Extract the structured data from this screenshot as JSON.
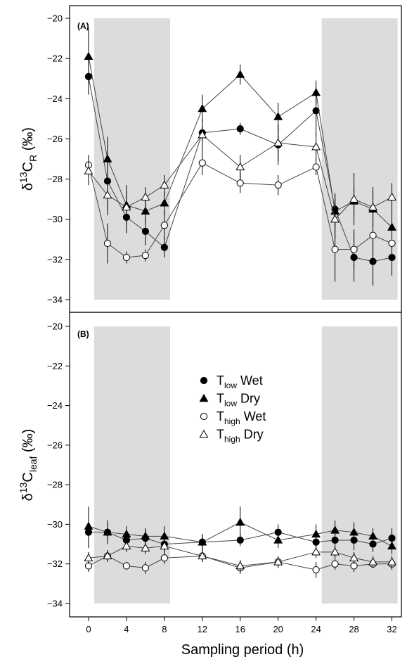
{
  "chart_data": [
    {
      "type": "line",
      "panel_label": "(A)",
      "ylabel": {
        "prefix": "δ",
        "sup": "13",
        "main": "C",
        "sub": "R",
        "unit": "(‰)"
      },
      "ylim": [
        -34,
        -20
      ],
      "yticks": [
        -20,
        -22,
        -24,
        -26,
        -28,
        -30,
        -32,
        -34
      ],
      "xlim": [
        -2,
        33
      ],
      "shaded_x_ranges": [
        [
          0.6,
          8.6
        ],
        [
          24.6,
          32.6
        ]
      ],
      "series": [
        {
          "id": "tlow_wet",
          "marker": "circle",
          "fill": "#000000",
          "x": [
            0,
            2,
            4,
            6,
            8,
            12,
            16,
            20,
            24,
            26,
            28,
            30,
            32
          ],
          "y": [
            -22.9,
            -28.1,
            -29.9,
            -30.6,
            -31.4,
            -25.7,
            -25.5,
            -26.3,
            -24.6,
            -29.5,
            -31.9,
            -32.1,
            -31.9
          ],
          "err": [
            0.9,
            1.4,
            0.8,
            0.7,
            0.5,
            0.4,
            0.3,
            1.0,
            1.2,
            0.8,
            1.2,
            1.2,
            0.9
          ]
        },
        {
          "id": "tlow_dry",
          "marker": "triangle",
          "fill": "#000000",
          "x": [
            0,
            2,
            4,
            6,
            8,
            12,
            16,
            20,
            24,
            26,
            28,
            30,
            32
          ],
          "y": [
            -21.9,
            -27.0,
            -29.3,
            -29.6,
            -29.2,
            -24.5,
            -22.8,
            -24.9,
            -23.7,
            -29.6,
            -29.1,
            -29.5,
            -30.4
          ],
          "err": [
            1.4,
            1.1,
            1.0,
            0.6,
            0.6,
            0.7,
            0.5,
            0.7,
            0.6,
            0.8,
            0.7,
            0.9,
            0.9
          ]
        },
        {
          "id": "thigh_wet",
          "marker": "circle",
          "fill": "#ffffff",
          "x": [
            0,
            2,
            4,
            6,
            8,
            12,
            16,
            20,
            24,
            26,
            28,
            30,
            32
          ],
          "y": [
            -27.3,
            -31.2,
            -31.9,
            -31.8,
            -30.3,
            -27.2,
            -28.2,
            -28.3,
            -27.4,
            -31.5,
            -31.5,
            -30.8,
            -31.2
          ],
          "err": [
            0.5,
            1.0,
            0.3,
            0.3,
            0.7,
            0.6,
            0.5,
            0.5,
            0.4,
            1.6,
            1.0,
            1.2,
            0.9
          ]
        },
        {
          "id": "thigh_dry",
          "marker": "triangle",
          "fill": "#ffffff",
          "x": [
            0,
            2,
            4,
            6,
            8,
            12,
            16,
            20,
            24,
            26,
            28,
            30,
            32
          ],
          "y": [
            -27.6,
            -28.8,
            -29.4,
            -28.9,
            -28.3,
            -25.8,
            -27.4,
            -26.2,
            -26.4,
            -30.0,
            -29.0,
            -29.4,
            -28.9
          ],
          "err": [
            0.7,
            1.0,
            0.8,
            0.5,
            0.5,
            0.8,
            0.6,
            0.9,
            0.7,
            1.0,
            1.3,
            1.0,
            0.7
          ]
        }
      ]
    },
    {
      "type": "line",
      "panel_label": "(B)",
      "ylabel": {
        "prefix": "δ",
        "sup": "13",
        "main": "C",
        "sub": "leaf",
        "unit": "(‰)"
      },
      "ylim": [
        -34,
        -20
      ],
      "yticks": [
        -20,
        -22,
        -24,
        -26,
        -28,
        -30,
        -32,
        -34
      ],
      "xlim": [
        -2,
        33
      ],
      "xticks": [
        0,
        4,
        8,
        12,
        16,
        20,
        24,
        28,
        32
      ],
      "xlabel": "Sampling period (h)",
      "shaded_x_ranges": [
        [
          0.6,
          8.6
        ],
        [
          24.6,
          32.6
        ]
      ],
      "legend": [
        {
          "marker": "circle",
          "fill": "#000000",
          "main": "T",
          "sub": "low",
          "suffix": " Wet"
        },
        {
          "marker": "triangle",
          "fill": "#000000",
          "main": "T",
          "sub": "low",
          "suffix": " Dry"
        },
        {
          "marker": "circle",
          "fill": "#ffffff",
          "main": "T",
          "sub": "high",
          "suffix": " Wet"
        },
        {
          "marker": "triangle",
          "fill": "#ffffff",
          "main": "T",
          "sub": "high",
          "suffix": " Dry"
        }
      ],
      "legend_position": "center",
      "series": [
        {
          "id": "tlow_wet",
          "marker": "circle",
          "fill": "#000000",
          "x": [
            0,
            2,
            4,
            6,
            8,
            12,
            16,
            20,
            24,
            26,
            28,
            30,
            32
          ],
          "y": [
            -30.4,
            -30.4,
            -30.8,
            -30.7,
            -31.0,
            -30.9,
            -30.8,
            -30.4,
            -30.9,
            -30.8,
            -30.8,
            -31.0,
            -30.7
          ],
          "err": [
            0.8,
            0.4,
            0.4,
            0.4,
            0.4,
            0.4,
            0.3,
            0.4,
            0.5,
            0.5,
            0.5,
            0.4,
            0.5
          ]
        },
        {
          "id": "tlow_dry",
          "marker": "triangle",
          "fill": "#000000",
          "x": [
            0,
            2,
            4,
            6,
            8,
            12,
            16,
            20,
            24,
            26,
            28,
            30,
            32
          ],
          "y": [
            -30.1,
            -30.4,
            -30.5,
            -30.6,
            -30.6,
            -30.9,
            -29.9,
            -30.8,
            -30.5,
            -30.3,
            -30.4,
            -30.6,
            -31.1
          ],
          "err": [
            1.0,
            0.6,
            0.4,
            0.4,
            0.5,
            0.4,
            0.8,
            0.4,
            0.5,
            0.5,
            0.5,
            0.4,
            0.4
          ]
        },
        {
          "id": "thigh_wet",
          "marker": "circle",
          "fill": "#ffffff",
          "x": [
            0,
            2,
            4,
            6,
            8,
            12,
            16,
            20,
            24,
            26,
            28,
            30,
            32
          ],
          "y": [
            -32.1,
            -31.6,
            -32.1,
            -32.2,
            -31.7,
            -31.6,
            -32.2,
            -31.9,
            -32.3,
            -32.0,
            -32.1,
            -32.0,
            -32.0
          ],
          "err": [
            0.3,
            0.3,
            0.2,
            0.3,
            0.3,
            0.3,
            0.3,
            0.2,
            0.4,
            0.3,
            0.3,
            0.2,
            0.3
          ]
        },
        {
          "id": "thigh_dry",
          "marker": "triangle",
          "fill": "#ffffff",
          "x": [
            0,
            2,
            4,
            6,
            8,
            12,
            16,
            20,
            24,
            26,
            28,
            30,
            32
          ],
          "y": [
            -31.7,
            -31.6,
            -31.1,
            -31.2,
            -31.1,
            -31.6,
            -32.1,
            -31.9,
            -31.4,
            -31.4,
            -31.7,
            -31.9,
            -31.9
          ],
          "err": [
            0.3,
            0.3,
            0.3,
            0.3,
            0.3,
            0.3,
            0.3,
            0.3,
            0.3,
            0.3,
            0.3,
            0.3,
            0.3
          ]
        }
      ]
    }
  ],
  "colors": {
    "shade": "#dcdcdc",
    "axis": "#000000",
    "line": "#444444"
  }
}
